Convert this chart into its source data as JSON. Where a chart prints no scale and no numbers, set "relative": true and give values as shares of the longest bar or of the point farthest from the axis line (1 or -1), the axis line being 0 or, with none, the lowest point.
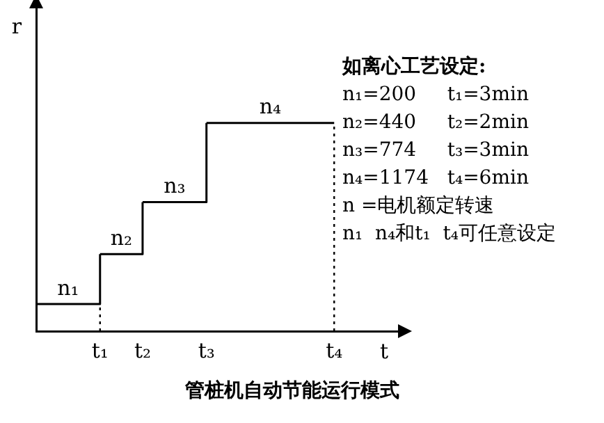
{
  "chart_data": {
    "type": "step",
    "title": "管桩机自动节能运行模式",
    "xlabel": "t",
    "ylabel": "r",
    "relative": true,
    "categories": [
      null,
      null,
      null,
      "t₁",
      null,
      "t₂",
      null,
      null,
      "t₃",
      null,
      null,
      null,
      null,
      null,
      "t₄",
      null,
      null,
      null
    ],
    "series": [
      {
        "name": "n₁",
        "color": "#000000",
        "values": [
          0.13,
          0.13,
          0.13,
          0.37,
          null,
          null,
          null,
          null,
          null,
          null,
          null,
          null,
          null,
          null,
          null,
          null,
          null,
          null
        ]
      },
      {
        "name": "n₂",
        "color": "#000000",
        "values": [
          null,
          null,
          null,
          0.37,
          0.37,
          0.62,
          null,
          null,
          null,
          null,
          null,
          null,
          null,
          null,
          null,
          null,
          null,
          null
        ]
      },
      {
        "name": "n₃",
        "color": "#000000",
        "values": [
          null,
          null,
          null,
          null,
          null,
          0.62,
          0.62,
          0.62,
          1,
          null,
          null,
          null,
          null,
          null,
          null,
          null,
          null,
          null
        ]
      },
      {
        "name": "n₄",
        "color": "#000000",
        "values": [
          null,
          null,
          null,
          null,
          null,
          null,
          null,
          null,
          1,
          1,
          1,
          1,
          1,
          1,
          1,
          null,
          null,
          null
        ]
      }
    ],
    "ref_lines": [
      {
        "axis": "x",
        "value": "t₁",
        "line_style": "dotted",
        "color": "#000000"
      },
      {
        "axis": "x",
        "value": "t₄",
        "line_style": "dotted",
        "color": "#000000"
      }
    ],
    "annotations": [
      "如离心工艺设定:",
      "n₁=200     t₁=3min",
      "n₂=440     t₂=2min",
      "n₃=774     t₃=3min",
      "n₄=1174   t₄=6min",
      "n =电机额定转速",
      "n₁  n₄和t₁  t₄可任意设定"
    ],
    "grid": false,
    "legend": false,
    "marker": "none",
    "line_style": "solid"
  }
}
